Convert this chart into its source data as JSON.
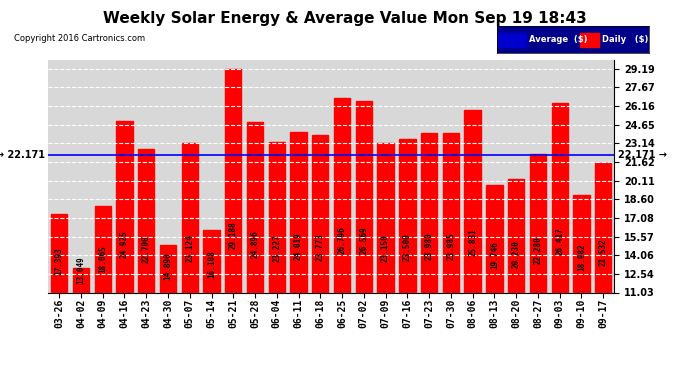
{
  "title": "Weekly Solar Energy & Average Value Mon Sep 19 18:43",
  "copyright": "Copyright 2016 Cartronics.com",
  "categories": [
    "03-26",
    "04-02",
    "04-09",
    "04-16",
    "04-23",
    "04-30",
    "05-07",
    "05-14",
    "05-21",
    "05-28",
    "06-04",
    "06-11",
    "06-18",
    "06-25",
    "07-02",
    "07-09",
    "07-16",
    "07-23",
    "07-30",
    "08-06",
    "08-13",
    "08-20",
    "08-27",
    "09-03",
    "09-10",
    "09-17"
  ],
  "values": [
    17.393,
    13.049,
    18.065,
    24.925,
    22.7,
    14.89,
    23.124,
    16.108,
    29.188,
    24.896,
    23.227,
    24.019,
    23.773,
    26.796,
    26.569,
    23.15,
    23.5,
    23.98,
    23.985,
    25.831,
    19.746,
    20.23,
    22.28,
    26.417,
    18.982,
    21.532
  ],
  "average": 22.171,
  "bar_color": "#ff0000",
  "average_line_color": "#0000ff",
  "background_color": "#ffffff",
  "plot_bg_color": "#d8d8d8",
  "grid_color": "#ffffff",
  "yticks": [
    11.03,
    12.54,
    14.06,
    15.57,
    17.08,
    18.6,
    20.11,
    21.62,
    23.14,
    24.65,
    26.16,
    27.67,
    29.19
  ],
  "ylim_min": 11.03,
  "ylim_max": 29.9,
  "legend_avg_color": "#0000cd",
  "legend_daily_color": "#ff0000",
  "title_fontsize": 11,
  "tick_fontsize": 7,
  "bar_label_fontsize": 5.5,
  "avg_label": "22.171",
  "last_label": "22.171"
}
